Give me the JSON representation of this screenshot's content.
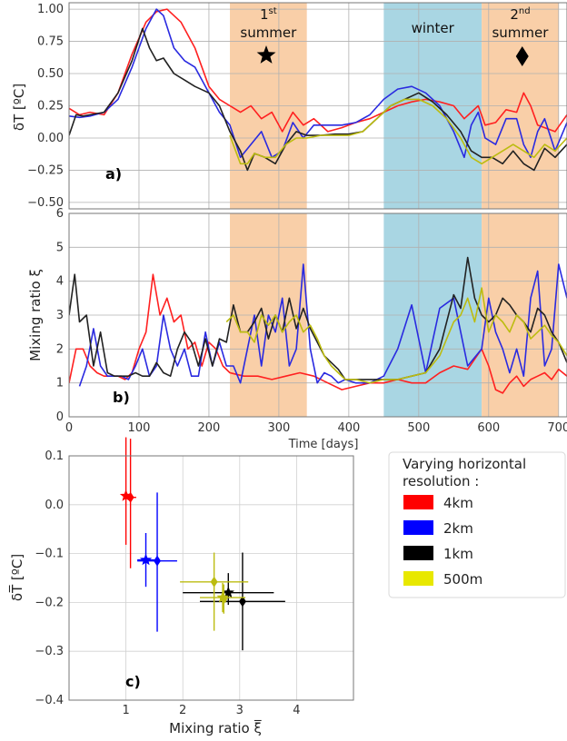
{
  "chart_data": [
    {
      "type": "line",
      "panel_label": "a)",
      "ylabel": "δT [ºC]",
      "ylim": [
        -0.55,
        1.05
      ],
      "xlim": [
        0,
        712
      ],
      "yticks": [
        "1.00",
        "0.75",
        "0.50",
        "0.25",
        "0.00",
        "−0.25",
        "−0.50"
      ],
      "grid": true,
      "season_bands": [
        {
          "name": "1st summer",
          "label_main": "1",
          "label_sup": "st",
          "label_line2": "summer",
          "x_start": 230,
          "x_end": 340,
          "color": "#f9cfa8",
          "marker": "star"
        },
        {
          "name": "winter",
          "label_main": "winter",
          "label_sup": "",
          "label_line2": "",
          "x_start": 450,
          "x_end": 590,
          "color": "#a9d6e3",
          "marker": ""
        },
        {
          "name": "2nd summer",
          "label_main": "2",
          "label_sup": "nd",
          "label_line2": "summer",
          "x_start": 590,
          "x_end": 700,
          "color": "#f9cfa8",
          "marker": "diamond"
        }
      ],
      "series": [
        {
          "color": "#ff2020",
          "x": [
            0,
            15,
            30,
            50,
            70,
            90,
            110,
            125,
            140,
            160,
            180,
            200,
            215,
            230,
            245,
            260,
            275,
            290,
            305,
            320,
            335,
            350,
            370,
            390,
            410,
            430,
            450,
            470,
            490,
            510,
            530,
            550,
            565,
            575,
            585,
            595,
            610,
            625,
            640,
            650,
            660,
            670,
            680,
            695,
            712
          ],
          "y": [
            0.23,
            0.18,
            0.2,
            0.18,
            0.35,
            0.65,
            0.9,
            0.98,
            1.0,
            0.9,
            0.7,
            0.4,
            0.3,
            0.25,
            0.2,
            0.25,
            0.15,
            0.2,
            0.05,
            0.2,
            0.1,
            0.15,
            0.05,
            0.08,
            0.12,
            0.15,
            0.2,
            0.25,
            0.28,
            0.3,
            0.28,
            0.25,
            0.15,
            0.2,
            0.25,
            0.1,
            0.12,
            0.22,
            0.2,
            0.35,
            0.25,
            0.1,
            0.08,
            0.05,
            0.18
          ]
        },
        {
          "color": "#2a2ae0",
          "x": [
            0,
            15,
            30,
            50,
            70,
            90,
            110,
            125,
            135,
            150,
            165,
            180,
            200,
            215,
            230,
            245,
            260,
            275,
            290,
            305,
            320,
            335,
            350,
            370,
            390,
            410,
            430,
            450,
            470,
            490,
            510,
            530,
            550,
            565,
            575,
            585,
            595,
            610,
            625,
            640,
            650,
            660,
            670,
            680,
            695,
            712
          ],
          "y": [
            0.17,
            0.16,
            0.17,
            0.2,
            0.3,
            0.55,
            0.85,
            1.0,
            0.95,
            0.7,
            0.6,
            0.55,
            0.35,
            0.2,
            0.1,
            -0.15,
            -0.05,
            0.05,
            -0.15,
            -0.1,
            0.12,
            0.0,
            0.1,
            0.1,
            0.1,
            0.12,
            0.18,
            0.3,
            0.38,
            0.4,
            0.35,
            0.25,
            0.05,
            -0.15,
            0.1,
            0.2,
            0.0,
            -0.05,
            0.15,
            0.15,
            -0.05,
            -0.15,
            0.05,
            0.15,
            -0.1,
            0.12
          ]
        },
        {
          "color": "#222222",
          "x": [
            0,
            10,
            20,
            30,
            50,
            70,
            90,
            105,
            115,
            125,
            135,
            150,
            165,
            180,
            200,
            215,
            230,
            245,
            255,
            265,
            280,
            295,
            310,
            325,
            340,
            360,
            380,
            400,
            420,
            440,
            460,
            480,
            500,
            520,
            540,
            560,
            575,
            590,
            605,
            620,
            635,
            650,
            665,
            680,
            695,
            712
          ],
          "y": [
            0.02,
            0.18,
            0.17,
            0.18,
            0.2,
            0.35,
            0.6,
            0.85,
            0.7,
            0.6,
            0.62,
            0.5,
            0.45,
            0.4,
            0.35,
            0.25,
            0.05,
            -0.1,
            -0.25,
            -0.12,
            -0.15,
            -0.2,
            -0.05,
            0.05,
            0.02,
            0.02,
            0.03,
            0.03,
            0.05,
            0.15,
            0.25,
            0.3,
            0.35,
            0.28,
            0.18,
            0.05,
            -0.1,
            -0.15,
            -0.15,
            -0.2,
            -0.1,
            -0.2,
            -0.25,
            -0.08,
            -0.15,
            -0.05
          ]
        },
        {
          "color": "#bcbc10",
          "x": [
            230,
            245,
            255,
            265,
            280,
            295,
            310,
            325,
            340,
            360,
            380,
            400,
            420,
            440,
            460,
            480,
            500,
            520,
            540,
            560,
            575,
            590,
            605,
            620,
            635,
            650,
            665,
            680,
            695,
            712
          ],
          "y": [
            0.02,
            -0.2,
            -0.2,
            -0.12,
            -0.15,
            -0.15,
            -0.05,
            0.0,
            0.0,
            0.02,
            0.02,
            0.02,
            0.05,
            0.15,
            0.25,
            0.3,
            0.3,
            0.25,
            0.15,
            0.0,
            -0.15,
            -0.2,
            -0.15,
            -0.1,
            -0.05,
            -0.1,
            -0.15,
            -0.05,
            -0.1,
            0.0
          ]
        }
      ]
    },
    {
      "type": "line",
      "panel_label": "b)",
      "ylabel": "Mixing ratio ξ",
      "ylim": [
        0,
        6
      ],
      "xlim": [
        0,
        712
      ],
      "yticks": [
        "0",
        "1",
        "2",
        "3",
        "4",
        "5",
        "6"
      ],
      "xticks": [
        "0",
        "100",
        "200",
        "300",
        "400",
        "500",
        "600",
        "700"
      ],
      "xlabel": "Time [days]",
      "grid": true,
      "series": [
        {
          "color": "#ff2020",
          "x": [
            0,
            10,
            20,
            30,
            40,
            50,
            60,
            70,
            80,
            90,
            100,
            110,
            120,
            130,
            140,
            150,
            160,
            170,
            180,
            190,
            200,
            210,
            220,
            230,
            250,
            270,
            290,
            310,
            330,
            350,
            370,
            390,
            410,
            430,
            450,
            470,
            490,
            510,
            530,
            550,
            570,
            590,
            600,
            610,
            620,
            630,
            640,
            650,
            660,
            670,
            680,
            690,
            700,
            712
          ],
          "y": [
            1.0,
            2.0,
            2.0,
            1.5,
            1.3,
            1.2,
            1.2,
            1.2,
            1.1,
            1.3,
            2.0,
            2.5,
            4.2,
            3.0,
            3.5,
            2.8,
            3.0,
            2.0,
            2.2,
            1.5,
            2.2,
            2.0,
            1.5,
            1.3,
            1.2,
            1.2,
            1.1,
            1.2,
            1.3,
            1.2,
            1.0,
            0.8,
            0.9,
            1.0,
            1.0,
            1.1,
            1.0,
            1.0,
            1.3,
            1.5,
            1.4,
            2.0,
            1.5,
            0.8,
            0.7,
            1.0,
            1.2,
            0.9,
            1.1,
            1.2,
            1.3,
            1.1,
            1.4,
            1.2
          ]
        },
        {
          "color": "#2a2ae0",
          "x": [
            15,
            25,
            35,
            45,
            55,
            65,
            75,
            85,
            95,
            105,
            115,
            125,
            135,
            145,
            155,
            165,
            175,
            185,
            195,
            205,
            215,
            225,
            235,
            245,
            255,
            265,
            275,
            285,
            295,
            305,
            315,
            325,
            335,
            345,
            355,
            365,
            375,
            385,
            395,
            410,
            430,
            450,
            470,
            490,
            510,
            530,
            550,
            570,
            590,
            600,
            610,
            620,
            630,
            640,
            650,
            660,
            670,
            680,
            690,
            700,
            712
          ],
          "y": [
            0.9,
            1.5,
            2.6,
            1.5,
            1.2,
            1.2,
            1.2,
            1.1,
            1.5,
            2.0,
            1.2,
            1.5,
            3.0,
            2.0,
            1.5,
            2.0,
            1.2,
            1.2,
            2.5,
            1.5,
            2.2,
            1.5,
            1.5,
            1.0,
            2.0,
            3.0,
            1.5,
            3.0,
            2.5,
            3.5,
            1.5,
            2.0,
            4.5,
            2.0,
            1.0,
            1.3,
            1.2,
            1.0,
            1.1,
            1.0,
            1.0,
            1.2,
            2.0,
            3.3,
            1.3,
            3.2,
            3.5,
            1.5,
            2.0,
            3.5,
            2.5,
            2.0,
            1.3,
            2.0,
            1.2,
            3.5,
            4.3,
            1.5,
            2.0,
            4.5,
            3.5
          ]
        },
        {
          "color": "#222222",
          "x": [
            0,
            8,
            15,
            25,
            35,
            45,
            55,
            65,
            75,
            85,
            95,
            105,
            115,
            125,
            135,
            145,
            155,
            165,
            175,
            185,
            195,
            205,
            215,
            225,
            235,
            245,
            255,
            265,
            275,
            285,
            295,
            305,
            315,
            325,
            335,
            345,
            355,
            365,
            375,
            385,
            395,
            410,
            430,
            450,
            470,
            490,
            510,
            530,
            550,
            560,
            570,
            580,
            590,
            600,
            610,
            620,
            630,
            640,
            650,
            660,
            670,
            680,
            690,
            700,
            712
          ],
          "y": [
            3.0,
            4.2,
            2.8,
            3.0,
            1.5,
            2.5,
            1.3,
            1.2,
            1.2,
            1.2,
            1.3,
            1.2,
            1.2,
            1.6,
            1.3,
            1.2,
            2.0,
            2.5,
            2.2,
            1.5,
            2.3,
            1.5,
            2.3,
            2.2,
            3.3,
            2.5,
            2.5,
            2.8,
            3.2,
            2.3,
            3.0,
            2.5,
            3.5,
            2.6,
            3.2,
            2.6,
            2.2,
            1.8,
            1.6,
            1.4,
            1.1,
            1.1,
            1.1,
            1.1,
            1.1,
            1.2,
            1.3,
            2.0,
            3.6,
            3.2,
            4.7,
            3.5,
            3.0,
            2.8,
            3.0,
            3.5,
            3.3,
            3.0,
            2.8,
            2.5,
            3.2,
            3.0,
            2.5,
            2.2,
            1.6
          ]
        },
        {
          "color": "#bcbc10",
          "x": [
            225,
            235,
            245,
            255,
            265,
            275,
            285,
            295,
            305,
            315,
            325,
            335,
            345,
            355,
            365,
            375,
            385,
            395,
            410,
            430,
            450,
            470,
            490,
            510,
            530,
            550,
            560,
            570,
            580,
            590,
            600,
            610,
            620,
            630,
            640,
            650,
            660,
            670,
            680,
            690,
            700,
            712
          ],
          "y": [
            2.8,
            3.0,
            2.5,
            2.5,
            2.2,
            3.0,
            2.7,
            3.0,
            2.5,
            2.8,
            3.0,
            2.5,
            2.7,
            2.3,
            1.8,
            1.5,
            1.3,
            1.1,
            1.1,
            1.0,
            1.1,
            1.1,
            1.2,
            1.3,
            1.8,
            2.8,
            3.0,
            3.5,
            2.8,
            3.8,
            2.5,
            3.0,
            2.8,
            2.5,
            3.0,
            2.8,
            2.3,
            2.5,
            2.7,
            2.4,
            2.2,
            1.8
          ]
        }
      ]
    },
    {
      "type": "scatter",
      "panel_label": "c)",
      "xlabel": "Mixing ratio ξ̅",
      "ylabel": "δT̅ [ºC]",
      "xlim": [
        0,
        5
      ],
      "ylim": [
        -0.4,
        0.1
      ],
      "xticks": [
        "1",
        "2",
        "3",
        "4"
      ],
      "yticks": [
        "0.1",
        "0.0",
        "−0.1",
        "−0.2",
        "−0.3",
        "−0.4"
      ],
      "grid": true,
      "legend": {
        "title": "Varying horizontal resolution :",
        "title_line1": "Varying horizontal",
        "title_line2": "resolution :",
        "position": "right",
        "entries": [
          {
            "label": "4km",
            "color": "#ff0000"
          },
          {
            "label": "2km",
            "color": "#0000ff"
          },
          {
            "label": "1km",
            "color": "#000000"
          },
          {
            "label": "500m",
            "color": "#e8e800"
          }
        ]
      },
      "points": [
        {
          "color": "#ff0000",
          "marker": "star",
          "x": 1.0,
          "y": 0.018,
          "xerr": 0.05,
          "yerr_low": 0.1,
          "yerr_high": 0.12
        },
        {
          "color": "#ff0000",
          "marker": "diamond",
          "x": 1.08,
          "y": 0.015,
          "xerr": 0.1,
          "yerr_low": 0.145,
          "yerr_high": 0.12
        },
        {
          "color": "#0000ff",
          "marker": "star",
          "x": 1.35,
          "y": -0.113,
          "xerr": 0.15,
          "yerr_low": 0.055,
          "yerr_high": 0.055
        },
        {
          "color": "#0000ff",
          "marker": "diamond",
          "x": 1.55,
          "y": -0.115,
          "xerr": 0.35,
          "yerr_low": 0.145,
          "yerr_high": 0.14
        },
        {
          "color": "#000000",
          "marker": "star",
          "x": 2.8,
          "y": -0.18,
          "xerr": 0.8,
          "yerr_low": 0.025,
          "yerr_high": 0.04
        },
        {
          "color": "#000000",
          "marker": "diamond",
          "x": 3.05,
          "y": -0.198,
          "xerr": 0.75,
          "yerr_low": 0.1,
          "yerr_high": 0.1
        },
        {
          "color": "#bcbc10",
          "marker": "star",
          "x": 2.7,
          "y": -0.19,
          "xerr": 0.4,
          "yerr_low": 0.03,
          "yerr_high": 0.03
        },
        {
          "color": "#bcbc10",
          "marker": "diamond",
          "x": 2.55,
          "y": -0.158,
          "xerr": 0.6,
          "yerr_low": 0.1,
          "yerr_high": 0.06
        },
        {
          "color": "#bcbc10",
          "marker": "diamond",
          "x": 2.72,
          "y": -0.193,
          "xerr": 0.05,
          "yerr_low": 0.03,
          "yerr_high": 0.03
        }
      ]
    }
  ]
}
